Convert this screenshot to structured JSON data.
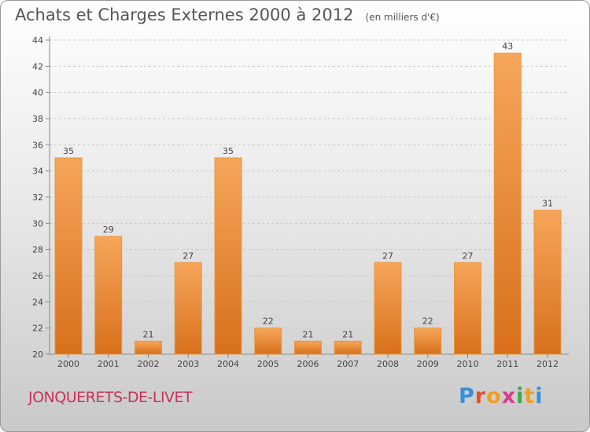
{
  "title": "Achats et Charges Externes 2000 à 2012",
  "unit": "(en milliers d'€)",
  "commune": "JONQUERETS-DE-LIVET",
  "logo": {
    "letters": [
      "P",
      "r",
      "o",
      "x",
      "i",
      "t",
      "i"
    ],
    "colors": [
      "#3a8fd6",
      "#e0512b",
      "#f0a020",
      "#d93a8a",
      "#3aa84a",
      "#f0a020",
      "#3a8fd6"
    ]
  },
  "colors": {
    "bar": "#f08a30",
    "bar_light": "#f6a65a",
    "bar_dark": "#d8701a",
    "label": "#444444"
  },
  "chart_data": {
    "type": "bar",
    "categories": [
      "2000",
      "2001",
      "2002",
      "2003",
      "2004",
      "2005",
      "2006",
      "2007",
      "2008",
      "2009",
      "2010",
      "2011",
      "2012"
    ],
    "values": [
      35,
      29,
      21,
      27,
      35,
      22,
      21,
      21,
      27,
      22,
      27,
      43,
      31
    ],
    "title": "Achats et Charges Externes 2000 à 2012",
    "ylim": [
      20,
      44
    ],
    "yticks": [
      20,
      22,
      24,
      26,
      28,
      30,
      32,
      34,
      36,
      38,
      40,
      42,
      44
    ],
    "grid": true,
    "data_labels": true
  }
}
